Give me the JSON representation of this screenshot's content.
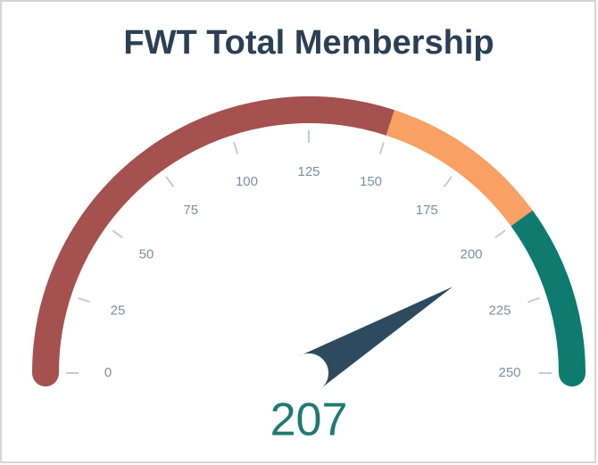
{
  "chart_data": {
    "type": "gauge",
    "title": "FWT Total Membership",
    "value": 207,
    "ylim": [
      0,
      250
    ],
    "yticks": [
      0,
      25,
      50,
      75,
      100,
      125,
      150,
      175,
      200,
      225,
      250
    ],
    "bands": [
      {
        "from": 0,
        "to": 150,
        "color": "#a4514f"
      },
      {
        "from": 150,
        "to": 200,
        "color": "#f9a064"
      },
      {
        "from": 200,
        "to": 250,
        "color": "#0e7a70"
      }
    ],
    "needle_color": "#2d4a5f",
    "value_color": "#1f7a72"
  }
}
